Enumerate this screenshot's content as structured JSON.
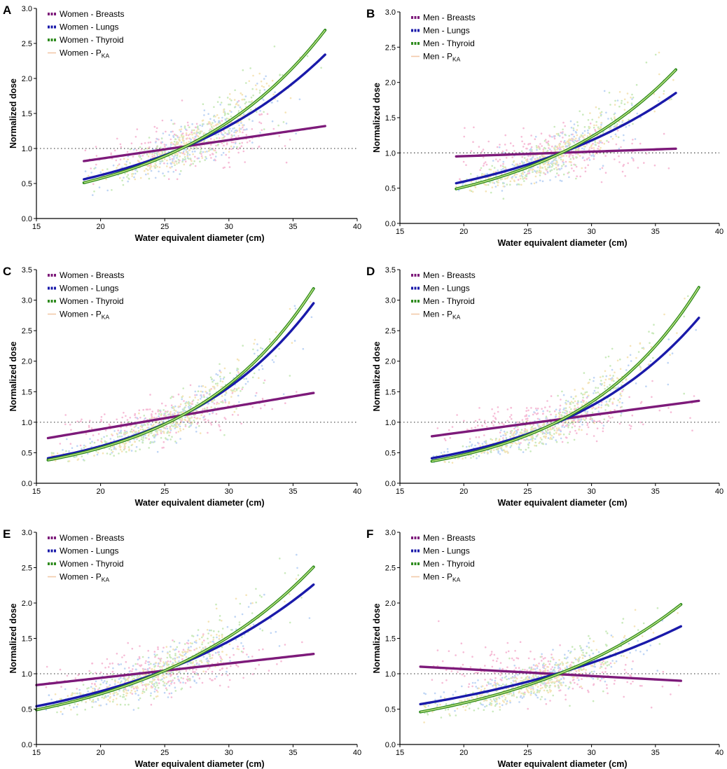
{
  "colors": {
    "breasts": "#7d1a7a",
    "lungs": "#1a1aaa",
    "thyroid": "#2e8b1e",
    "thyroid_core": "#c8e68a",
    "pka": "#f2c9a8",
    "points_breasts": "#f4a6c9",
    "points_lungs": "#a9c7f2",
    "points_thyroid": "#b9e3a6",
    "points_pka": "#f2dca0",
    "reference_line": "#555555"
  },
  "chart_data": [
    {
      "panel": "A",
      "type": "scatter",
      "title": "",
      "xlabel": "Water equivalent diameter (cm)",
      "ylabel": "Normalized dose",
      "xlim": [
        15,
        40
      ],
      "ylim": [
        0,
        3.0
      ],
      "xticks": [
        "15",
        "20",
        "25",
        "30",
        "35",
        "40"
      ],
      "yticks": [
        "0.0",
        "0.5",
        "1.0",
        "1.5",
        "2.0",
        "2.5",
        "3.0"
      ],
      "legend_position": "top-left",
      "reference_y": 1.0,
      "legend": [
        {
          "key": "breasts",
          "label": "Women - Breasts"
        },
        {
          "key": "lungs",
          "label": "Women - Lungs"
        },
        {
          "key": "thyroid",
          "label": "Women - Thyroid"
        },
        {
          "key": "pka",
          "label": "Women - P",
          "sub": "KA"
        }
      ],
      "series": [
        {
          "name": "Women - Breasts",
          "key": "breasts",
          "x_range": [
            18.7,
            37.5
          ],
          "y_start": 0.82,
          "y_end": 1.32,
          "fit": "linear"
        },
        {
          "name": "Women - Lungs",
          "key": "lungs",
          "x_range": [
            18.7,
            37.5
          ],
          "y_start": 0.56,
          "y_end": 2.34,
          "fit": "exponential"
        },
        {
          "name": "Women - Thyroid",
          "key": "thyroid",
          "x_range": [
            18.7,
            37.5
          ],
          "y_start": 0.51,
          "y_end": 2.69,
          "fit": "exponential"
        }
      ]
    },
    {
      "panel": "B",
      "type": "scatter",
      "title": "",
      "xlabel": "Water equivalent diameter (cm)",
      "ylabel": "Normalized dose",
      "xlim": [
        15,
        40
      ],
      "ylim": [
        0,
        3.0
      ],
      "xticks": [
        "15",
        "20",
        "25",
        "30",
        "35",
        "40"
      ],
      "yticks": [
        "0.0",
        "0.5",
        "1.0",
        "1.5",
        "2.0",
        "2.5",
        "3.0"
      ],
      "legend_position": "top-left",
      "reference_y": 1.0,
      "legend": [
        {
          "key": "breasts",
          "label": "Men - Breasts"
        },
        {
          "key": "lungs",
          "label": "Men - Lungs"
        },
        {
          "key": "thyroid",
          "label": "Men - Thyroid"
        },
        {
          "key": "pka",
          "label": "Men - P",
          "sub": "KA"
        }
      ],
      "series": [
        {
          "name": "Men - Breasts",
          "key": "breasts",
          "x_range": [
            19.4,
            36.6
          ],
          "y_start": 0.95,
          "y_end": 1.06,
          "fit": "linear"
        },
        {
          "name": "Men - Lungs",
          "key": "lungs",
          "x_range": [
            19.4,
            36.6
          ],
          "y_start": 0.57,
          "y_end": 1.85,
          "fit": "exponential"
        },
        {
          "name": "Men - Thyroid",
          "key": "thyroid",
          "x_range": [
            19.4,
            36.6
          ],
          "y_start": 0.49,
          "y_end": 2.18,
          "fit": "exponential"
        }
      ]
    },
    {
      "panel": "C",
      "type": "scatter",
      "title": "",
      "xlabel": "Water equivalent diameter (cm)",
      "ylabel": "Normalized dose",
      "xlim": [
        15,
        40
      ],
      "ylim": [
        0,
        3.5
      ],
      "xticks": [
        "15",
        "20",
        "25",
        "30",
        "35",
        "40"
      ],
      "yticks": [
        "0.0",
        "0.5",
        "1.0",
        "1.5",
        "2.0",
        "2.5",
        "3.0",
        "3.5"
      ],
      "legend_position": "top-left",
      "reference_y": 1.0,
      "legend": [
        {
          "key": "breasts",
          "label": "Women - Breasts"
        },
        {
          "key": "lungs",
          "label": "Women - Lungs"
        },
        {
          "key": "thyroid",
          "label": "Women - Thyroid"
        },
        {
          "key": "pka",
          "label": "Women - P",
          "sub": "KA"
        }
      ],
      "series": [
        {
          "name": "Women - Breasts",
          "key": "breasts",
          "x_range": [
            15.9,
            36.6
          ],
          "y_start": 0.74,
          "y_end": 1.48,
          "fit": "linear"
        },
        {
          "name": "Women - Lungs",
          "key": "lungs",
          "x_range": [
            15.9,
            36.6
          ],
          "y_start": 0.41,
          "y_end": 2.95,
          "fit": "exponential"
        },
        {
          "name": "Women - Thyroid",
          "key": "thyroid",
          "x_range": [
            15.9,
            36.6
          ],
          "y_start": 0.38,
          "y_end": 3.19,
          "fit": "exponential"
        }
      ]
    },
    {
      "panel": "D",
      "type": "scatter",
      "title": "",
      "xlabel": "Water equivalent diameter (cm)",
      "ylabel": "Normalized dose",
      "xlim": [
        15,
        40
      ],
      "ylim": [
        0,
        3.5
      ],
      "xticks": [
        "15",
        "20",
        "25",
        "30",
        "35",
        "40"
      ],
      "yticks": [
        "0.0",
        "0.5",
        "1.0",
        "1.5",
        "2.0",
        "2.5",
        "3.0",
        "3.5"
      ],
      "legend_position": "top-left",
      "reference_y": 1.0,
      "legend": [
        {
          "key": "breasts",
          "label": "Men - Breasts"
        },
        {
          "key": "lungs",
          "label": "Men - Lungs"
        },
        {
          "key": "thyroid",
          "label": "Men - Thyroid"
        },
        {
          "key": "pka",
          "label": "Men - P",
          "sub": "KA"
        }
      ],
      "series": [
        {
          "name": "Men - Breasts",
          "key": "breasts",
          "x_range": [
            17.5,
            38.4
          ],
          "y_start": 0.77,
          "y_end": 1.35,
          "fit": "linear"
        },
        {
          "name": "Men - Lungs",
          "key": "lungs",
          "x_range": [
            17.5,
            38.4
          ],
          "y_start": 0.41,
          "y_end": 2.71,
          "fit": "exponential"
        },
        {
          "name": "Men - Thyroid",
          "key": "thyroid",
          "x_range": [
            17.5,
            38.4
          ],
          "y_start": 0.36,
          "y_end": 3.21,
          "fit": "exponential"
        }
      ]
    },
    {
      "panel": "E",
      "type": "scatter",
      "title": "",
      "xlabel": "Water equivalent diameter (cm)",
      "ylabel": "Normalized dose",
      "xlim": [
        15,
        40
      ],
      "ylim": [
        0,
        3.0
      ],
      "xticks": [
        "15",
        "20",
        "25",
        "30",
        "35",
        "40"
      ],
      "yticks": [
        "0.0",
        "0.5",
        "1.0",
        "1.5",
        "2.0",
        "2.5",
        "3.0"
      ],
      "legend_position": "top-left",
      "reference_y": 1.0,
      "legend": [
        {
          "key": "breasts",
          "label": "Women - Breasts"
        },
        {
          "key": "lungs",
          "label": "Women - Lungs"
        },
        {
          "key": "thyroid",
          "label": "Women - Thyroid"
        },
        {
          "key": "pka",
          "label": "Women - P",
          "sub": "KA"
        }
      ],
      "series": [
        {
          "name": "Women - Breasts",
          "key": "breasts",
          "x_range": [
            15.0,
            36.6
          ],
          "y_start": 0.84,
          "y_end": 1.28,
          "fit": "linear"
        },
        {
          "name": "Women - Lungs",
          "key": "lungs",
          "x_range": [
            15.0,
            36.6
          ],
          "y_start": 0.54,
          "y_end": 2.26,
          "fit": "exponential"
        },
        {
          "name": "Women - Thyroid",
          "key": "thyroid",
          "x_range": [
            15.0,
            36.6
          ],
          "y_start": 0.49,
          "y_end": 2.51,
          "fit": "exponential"
        }
      ]
    },
    {
      "panel": "F",
      "type": "scatter",
      "title": "",
      "xlabel": "Water equivalent diameter (cm)",
      "ylabel": "Normalized dose",
      "xlim": [
        15,
        40
      ],
      "ylim": [
        0,
        3.0
      ],
      "xticks": [
        "15",
        "20",
        "25",
        "30",
        "35",
        "40"
      ],
      "yticks": [
        "0.0",
        "0.5",
        "1.0",
        "1.5",
        "2.0",
        "2.5",
        "3.0"
      ],
      "legend_position": "top-left",
      "reference_y": 1.0,
      "legend": [
        {
          "key": "breasts",
          "label": "Men - Breasts"
        },
        {
          "key": "lungs",
          "label": "Men - Lungs"
        },
        {
          "key": "thyroid",
          "label": "Men - Thyroid"
        },
        {
          "key": "pka",
          "label": "Men - P",
          "sub": "KA"
        }
      ],
      "series": [
        {
          "name": "Men - Breasts",
          "key": "breasts",
          "x_range": [
            16.6,
            37.0
          ],
          "y_start": 1.1,
          "y_end": 0.9,
          "fit": "linear"
        },
        {
          "name": "Men - Lungs",
          "key": "lungs",
          "x_range": [
            16.6,
            37.0
          ],
          "y_start": 0.57,
          "y_end": 1.67,
          "fit": "exponential"
        },
        {
          "name": "Men - Thyroid",
          "key": "thyroid",
          "x_range": [
            16.6,
            37.0
          ],
          "y_start": 0.46,
          "y_end": 1.98,
          "fit": "exponential"
        }
      ]
    }
  ]
}
